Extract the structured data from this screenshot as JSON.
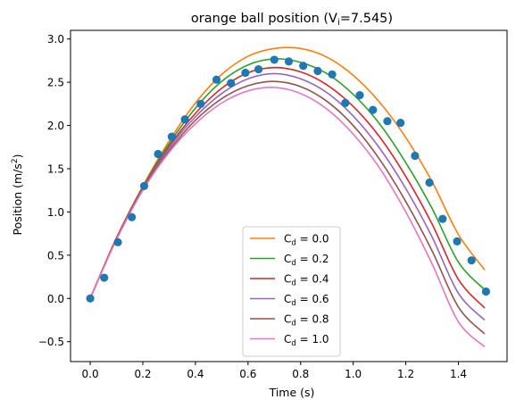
{
  "chart_data": {
    "type": "line",
    "title_prefix": "orange ball position (V",
    "title_sub": "i",
    "title_suffix": "=7.545)",
    "xlabel": "Time (s)",
    "ylabel_prefix": "Position (m/s",
    "ylabel_sup": "2",
    "ylabel_suffix": ")",
    "xlim": [
      -0.075,
      1.585
    ],
    "ylim": [
      -0.73,
      3.1
    ],
    "xticks": [
      0.0,
      0.2,
      0.4,
      0.6,
      0.8,
      1.0,
      1.2,
      1.4
    ],
    "xtick_labels": [
      "0.0",
      "0.2",
      "0.4",
      "0.6",
      "0.8",
      "1.0",
      "1.2",
      "1.4"
    ],
    "yticks": [
      -0.5,
      0.0,
      0.5,
      1.0,
      1.5,
      2.0,
      2.5,
      3.0
    ],
    "ytick_labels": [
      "−0.5",
      "0.0",
      "0.5",
      "1.0",
      "1.5",
      "2.0",
      "2.5",
      "3.0"
    ],
    "grid": false,
    "legend_position": "lower-center",
    "legend_symbol": "C",
    "legend_subscript": "d",
    "curve_x": [
      0,
      0.1,
      0.2,
      0.3,
      0.4,
      0.5,
      0.6,
      0.7,
      0.8,
      0.9,
      1.0,
      1.1,
      1.2,
      1.3,
      1.4,
      1.5
    ],
    "series": [
      {
        "name": "0.0",
        "color": "#ff7f0e",
        "y": [
          0,
          0.7,
          1.3,
          1.82,
          2.26,
          2.59,
          2.8,
          2.89,
          2.89,
          2.79,
          2.58,
          2.27,
          1.86,
          1.35,
          0.74,
          0.33
        ]
      },
      {
        "name": "0.2",
        "color": "#2ca02c",
        "y": [
          0,
          0.7,
          1.29,
          1.79,
          2.2,
          2.51,
          2.7,
          2.77,
          2.73,
          2.6,
          2.36,
          2.02,
          1.57,
          1.04,
          0.42,
          0.1
        ]
      },
      {
        "name": "0.4",
        "color": "#d62728",
        "y": [
          0,
          0.7,
          1.28,
          1.76,
          2.14,
          2.43,
          2.61,
          2.67,
          2.62,
          2.47,
          2.22,
          1.87,
          1.41,
          0.86,
          0.22,
          -0.11
        ]
      },
      {
        "name": "0.6",
        "color": "#9467bd",
        "y": [
          0,
          0.69,
          1.27,
          1.74,
          2.1,
          2.37,
          2.54,
          2.6,
          2.54,
          2.38,
          2.11,
          1.74,
          1.27,
          0.71,
          0.06,
          -0.25
        ]
      },
      {
        "name": "0.8",
        "color": "#8c564b",
        "y": [
          0,
          0.69,
          1.26,
          1.71,
          2.06,
          2.31,
          2.46,
          2.51,
          2.45,
          2.28,
          2.0,
          1.61,
          1.12,
          0.55,
          -0.1,
          -0.41
        ]
      },
      {
        "name": "1.0",
        "color": "#e377c2",
        "y": [
          0,
          0.68,
          1.25,
          1.69,
          2.02,
          2.26,
          2.4,
          2.44,
          2.37,
          2.19,
          1.9,
          1.51,
          1.0,
          0.4,
          -0.27,
          -0.56
        ]
      }
    ],
    "scatter": {
      "color": "#1f77b4",
      "x": [
        0.0,
        0.053,
        0.105,
        0.158,
        0.205,
        0.258,
        0.31,
        0.36,
        0.42,
        0.48,
        0.535,
        0.59,
        0.64,
        0.7,
        0.755,
        0.81,
        0.865,
        0.92,
        0.97,
        1.025,
        1.075,
        1.13,
        1.18,
        1.235,
        1.29,
        1.34,
        1.395,
        1.45,
        1.505
      ],
      "y": [
        0.0,
        0.24,
        0.65,
        0.94,
        1.3,
        1.67,
        1.87,
        2.07,
        2.25,
        2.53,
        2.49,
        2.61,
        2.65,
        2.76,
        2.74,
        2.69,
        2.63,
        2.59,
        2.26,
        2.35,
        2.18,
        2.05,
        2.03,
        1.65,
        1.34,
        0.92,
        0.66,
        0.44,
        0.08
      ]
    }
  }
}
